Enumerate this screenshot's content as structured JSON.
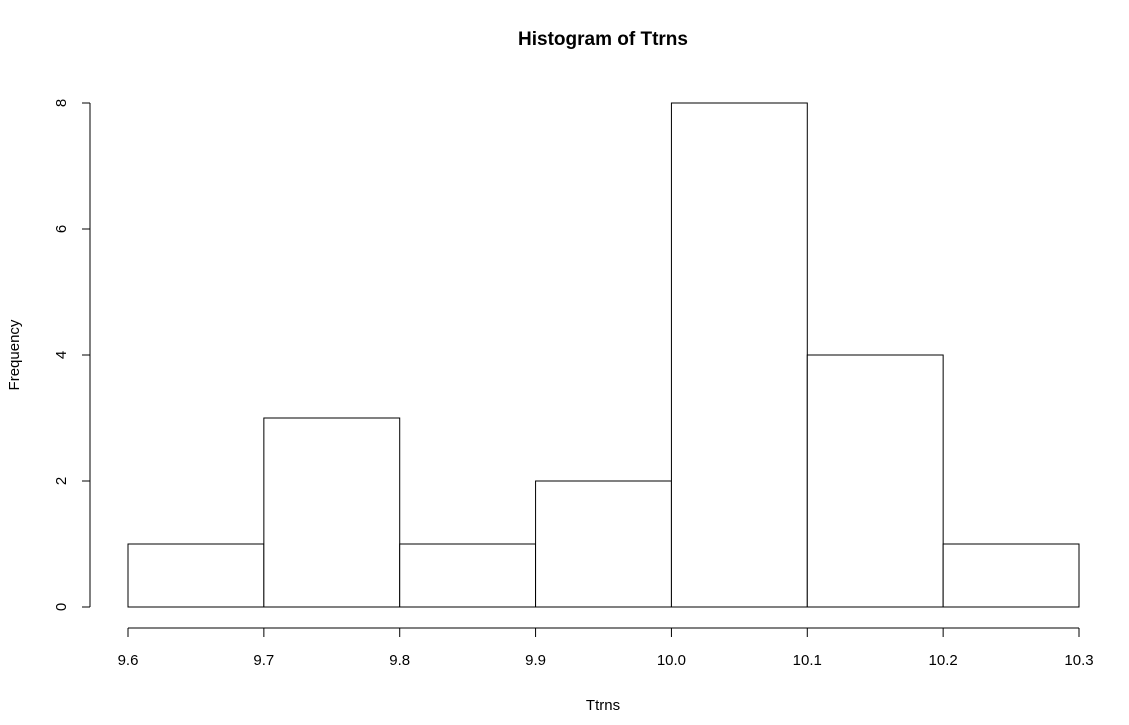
{
  "chart_data": {
    "type": "histogram",
    "title": "Histogram of Ttrns",
    "x_label": "Ttrns",
    "y_label": "Frequency",
    "bins": [
      9.6,
      9.7,
      9.8,
      9.9,
      10.0,
      10.1,
      10.2,
      10.3
    ],
    "values": [
      1,
      3,
      1,
      2,
      8,
      4,
      1
    ],
    "color": "#ffffff",
    "edge_color": "#000000",
    "xlim": [
      9.6,
      10.3
    ],
    "xticks": [
      9.6,
      9.7,
      9.8,
      9.9,
      {
        "value": 10.0,
        "label": "10.0"
      },
      10.1,
      10.2,
      10.3
    ],
    "ylim": [
      0,
      8
    ],
    "yticks": [
      0,
      2,
      4,
      6,
      8
    ],
    "grid": false
  }
}
